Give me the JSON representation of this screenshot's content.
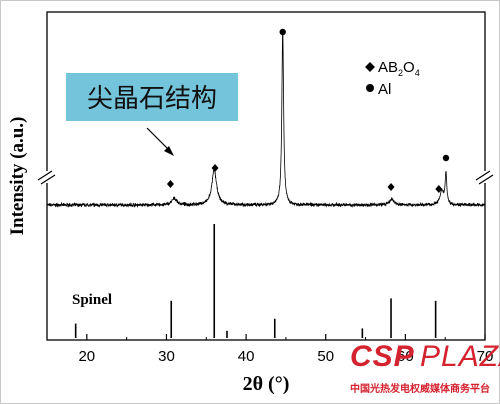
{
  "chart_data": {
    "type": "line",
    "xlabel": "2θ (°)",
    "ylabel": "Intensity (a.u.)",
    "xlim": [
      15,
      70
    ],
    "x_ticks": [
      20,
      30,
      40,
      50,
      60,
      70
    ],
    "legend": {
      "placement": "top-right",
      "entries": [
        {
          "marker": "diamond",
          "label_main": "AB",
          "sub1": "2",
          "mid": "O",
          "sub2": "4"
        },
        {
          "marker": "circle",
          "label": "Al"
        }
      ]
    },
    "annotation": {
      "text": "尖晶石结构",
      "box_color": "#74c5dc"
    },
    "reference": {
      "label": "Spinel",
      "sticks": [
        {
          "x": 18.6,
          "h": 0.12
        },
        {
          "x": 30.6,
          "h": 0.31
        },
        {
          "x": 36.0,
          "h": 0.95
        },
        {
          "x": 37.6,
          "h": 0.06
        },
        {
          "x": 43.6,
          "h": 0.16
        },
        {
          "x": 54.6,
          "h": 0.08
        },
        {
          "x": 58.2,
          "h": 0.33
        },
        {
          "x": 63.8,
          "h": 0.31
        }
      ]
    },
    "pattern": {
      "baseline": 0.05,
      "noise": 0.012,
      "peaks": [
        {
          "x": 31.0,
          "h": 0.06,
          "w": 0.35
        },
        {
          "x": 36.0,
          "h": 0.32,
          "w": 0.35
        },
        {
          "x": 44.6,
          "h": 1.6,
          "w": 0.13
        },
        {
          "x": 58.3,
          "h": 0.05,
          "w": 0.35
        },
        {
          "x": 64.6,
          "h": 0.12,
          "w": 0.3
        },
        {
          "x": 65.1,
          "h": 0.28,
          "w": 0.12
        }
      ],
      "markers": [
        {
          "x": 30.5,
          "type": "diamond"
        },
        {
          "x": 36.1,
          "type": "diamond"
        },
        {
          "x": 44.6,
          "type": "circle"
        },
        {
          "x": 58.2,
          "type": "diamond"
        },
        {
          "x": 64.2,
          "type": "diamond"
        },
        {
          "x": 65.1,
          "type": "circle"
        }
      ]
    }
  },
  "watermark": {
    "brand_left": "CSP",
    "brand_right": "PLAZA",
    "subtitle": "中国光热发电权威媒体商务平台",
    "color": "#d4232f"
  }
}
